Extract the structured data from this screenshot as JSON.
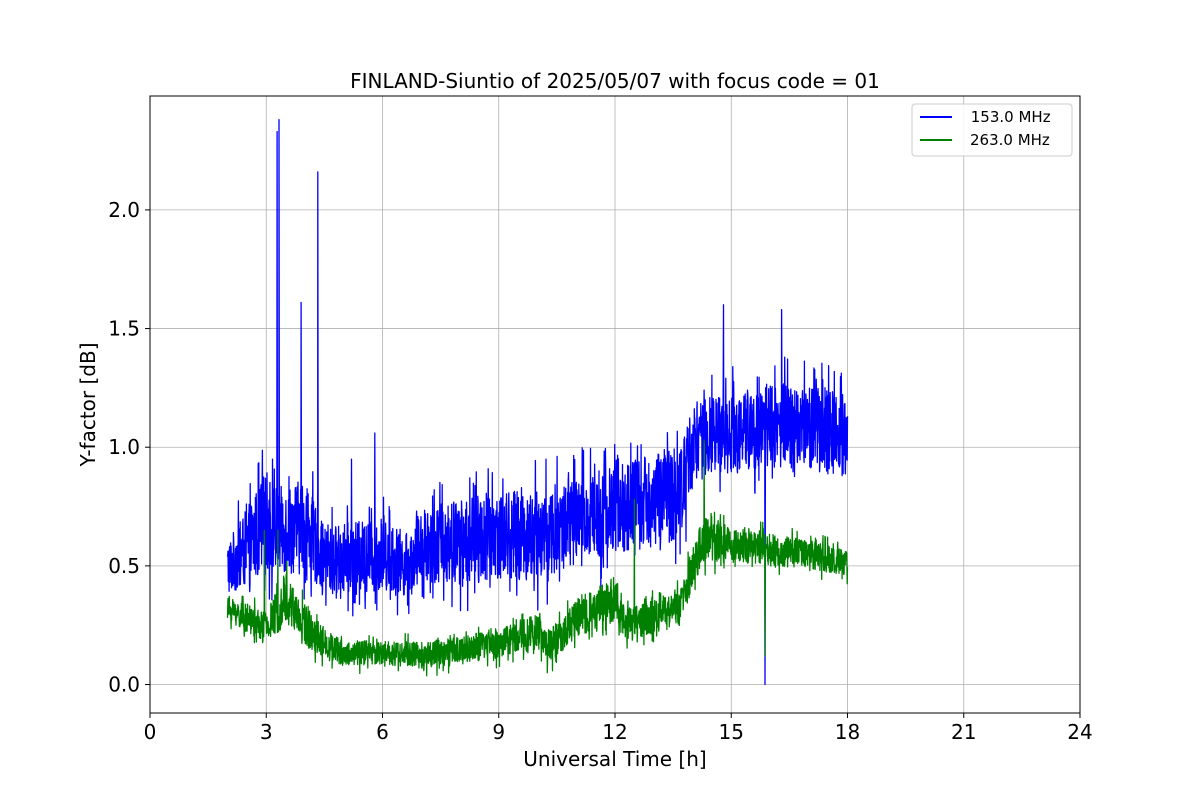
{
  "chart_data": {
    "type": "line",
    "title": "FINLAND-Siuntio of 2025/05/07 with focus code = 01",
    "xlabel": "Universal Time [h]",
    "ylabel": "Y-factor [dB]",
    "xlim": [
      0,
      24
    ],
    "ylim": [
      -0.12,
      2.48
    ],
    "x_ticks": [
      0,
      3,
      6,
      9,
      12,
      15,
      18,
      21,
      24
    ],
    "x_tick_labels": [
      "0",
      "3",
      "6",
      "9",
      "12",
      "15",
      "18",
      "21",
      "24"
    ],
    "y_ticks": [
      0.0,
      0.5,
      1.0,
      1.5,
      2.0
    ],
    "y_tick_labels": [
      "0.0",
      "0.5",
      "1.0",
      "1.5",
      "2.0"
    ],
    "grid": true,
    "legend_position": "top-right",
    "series": [
      {
        "name": " 153.0 MHz",
        "color": "#0000ff",
        "x_start": 2.0,
        "x_end": 18.0,
        "envelope": [
          {
            "x": 2.0,
            "low": 0.3,
            "high": 0.68
          },
          {
            "x": 2.5,
            "low": 0.3,
            "high": 0.85
          },
          {
            "x": 3.0,
            "low": 0.32,
            "high": 1.05
          },
          {
            "x": 3.3,
            "low": 0.35,
            "high": 0.95
          },
          {
            "x": 4.0,
            "low": 0.33,
            "high": 1.0
          },
          {
            "x": 4.5,
            "low": 0.3,
            "high": 0.75
          },
          {
            "x": 5.0,
            "low": 0.28,
            "high": 0.78
          },
          {
            "x": 6.0,
            "low": 0.3,
            "high": 0.8
          },
          {
            "x": 6.7,
            "low": 0.28,
            "high": 0.72
          },
          {
            "x": 7.0,
            "low": 0.33,
            "high": 0.85
          },
          {
            "x": 8.0,
            "low": 0.3,
            "high": 0.9
          },
          {
            "x": 9.0,
            "low": 0.32,
            "high": 0.95
          },
          {
            "x": 10.0,
            "low": 0.3,
            "high": 0.95
          },
          {
            "x": 11.0,
            "low": 0.38,
            "high": 1.0
          },
          {
            "x": 12.0,
            "low": 0.42,
            "high": 1.05
          },
          {
            "x": 13.0,
            "low": 0.45,
            "high": 1.1
          },
          {
            "x": 13.7,
            "low": 0.48,
            "high": 1.15
          },
          {
            "x": 14.0,
            "low": 0.75,
            "high": 1.3
          },
          {
            "x": 15.0,
            "low": 0.78,
            "high": 1.35
          },
          {
            "x": 16.0,
            "low": 0.8,
            "high": 1.38
          },
          {
            "x": 17.0,
            "low": 0.78,
            "high": 1.4
          },
          {
            "x": 18.0,
            "low": 0.75,
            "high": 1.35
          }
        ],
        "spikes": [
          {
            "x": 3.28,
            "y": 2.33
          },
          {
            "x": 3.33,
            "y": 2.38
          },
          {
            "x": 3.9,
            "y": 1.61
          },
          {
            "x": 4.33,
            "y": 2.16
          },
          {
            "x": 5.2,
            "y": 0.95
          },
          {
            "x": 5.8,
            "y": 1.06
          },
          {
            "x": 14.8,
            "y": 1.6
          },
          {
            "x": 16.3,
            "y": 1.58
          },
          {
            "x": 15.87,
            "y": 0.0
          }
        ]
      },
      {
        "name": "263.0 MHz",
        "color": "#008000",
        "x_start": 2.0,
        "x_end": 18.0,
        "envelope": [
          {
            "x": 2.0,
            "low": 0.24,
            "high": 0.4
          },
          {
            "x": 2.5,
            "low": 0.18,
            "high": 0.38
          },
          {
            "x": 3.0,
            "low": 0.12,
            "high": 0.35
          },
          {
            "x": 3.5,
            "low": 0.18,
            "high": 0.55
          },
          {
            "x": 4.0,
            "low": 0.1,
            "high": 0.4
          },
          {
            "x": 4.5,
            "low": 0.07,
            "high": 0.28
          },
          {
            "x": 5.0,
            "low": 0.04,
            "high": 0.22
          },
          {
            "x": 6.0,
            "low": 0.05,
            "high": 0.22
          },
          {
            "x": 7.0,
            "low": 0.03,
            "high": 0.22
          },
          {
            "x": 8.0,
            "low": 0.05,
            "high": 0.24
          },
          {
            "x": 9.0,
            "low": 0.07,
            "high": 0.28
          },
          {
            "x": 10.0,
            "low": 0.1,
            "high": 0.35
          },
          {
            "x": 10.3,
            "low": 0.04,
            "high": 0.28
          },
          {
            "x": 11.0,
            "low": 0.15,
            "high": 0.4
          },
          {
            "x": 12.0,
            "low": 0.2,
            "high": 0.52
          },
          {
            "x": 12.3,
            "low": 0.12,
            "high": 0.38
          },
          {
            "x": 13.0,
            "low": 0.18,
            "high": 0.4
          },
          {
            "x": 13.7,
            "low": 0.22,
            "high": 0.45
          },
          {
            "x": 14.3,
            "low": 0.45,
            "high": 0.8
          },
          {
            "x": 15.0,
            "low": 0.48,
            "high": 0.7
          },
          {
            "x": 16.0,
            "low": 0.45,
            "high": 0.68
          },
          {
            "x": 17.0,
            "low": 0.45,
            "high": 0.65
          },
          {
            "x": 18.0,
            "low": 0.42,
            "high": 0.6
          }
        ],
        "spikes": [
          {
            "x": 14.3,
            "y": 1.03
          },
          {
            "x": 12.5,
            "y": 0.78
          },
          {
            "x": 2.95,
            "y": 0.65
          },
          {
            "x": 3.3,
            "y": 0.65
          },
          {
            "x": 15.87,
            "y": 0.12
          }
        ]
      }
    ]
  }
}
